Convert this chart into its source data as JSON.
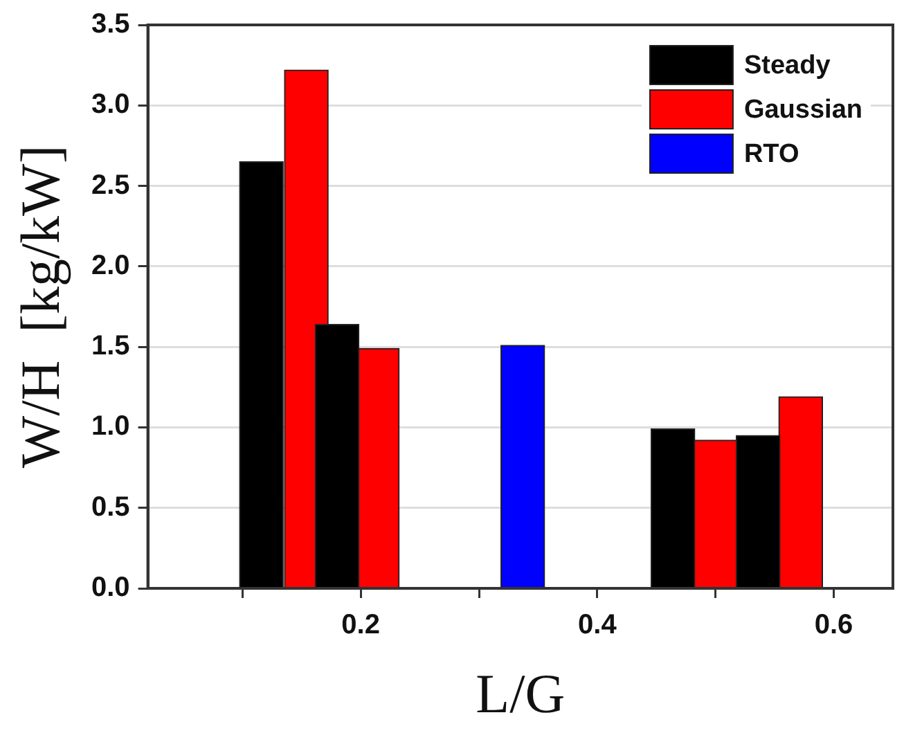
{
  "chart_data": {
    "type": "bar",
    "xlabel": "L/G",
    "ylabel": "W/H  [kg/kW]",
    "series": [
      {
        "name": "Steady",
        "color": "#000000",
        "x": [
          0.116,
          0.18,
          0.464,
          0.536
        ],
        "values": [
          2.65,
          1.64,
          0.99,
          0.95
        ]
      },
      {
        "name": "Gaussian",
        "color": "#ff0000",
        "x": [
          0.154,
          0.214,
          0.5,
          0.572
        ],
        "values": [
          3.22,
          1.49,
          0.92,
          1.19
        ]
      },
      {
        "name": "RTO",
        "color": "#0000ff",
        "x": [
          0.337
        ],
        "values": [
          1.51
        ]
      }
    ],
    "xlim": [
      0.02,
      0.65
    ],
    "xticks": [
      {
        "value": 0.1,
        "label": null
      },
      0.2,
      {
        "value": 0.3,
        "label": null
      },
      0.4,
      {
        "value": 0.5,
        "label": null
      },
      0.6
    ],
    "ylim": [
      0,
      3.5
    ],
    "yticks": [
      {
        "value": 0,
        "label": "0.0"
      },
      {
        "value": 0.5,
        "label": "0.5"
      },
      {
        "value": 1,
        "label": "1.0"
      },
      {
        "value": 1.5,
        "label": "1.5"
      },
      {
        "value": 2,
        "label": "2.0"
      },
      {
        "value": 2.5,
        "label": "2.5"
      },
      {
        "value": 3,
        "label": "3.0"
      },
      {
        "value": 3.5,
        "label": "3.5"
      }
    ],
    "grid": "y",
    "legend": "top right"
  }
}
